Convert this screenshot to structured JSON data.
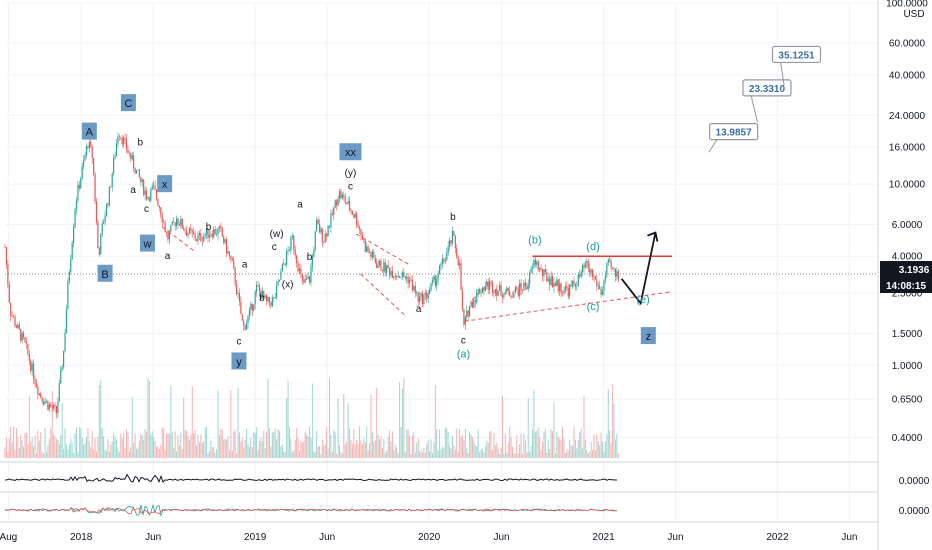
{
  "chart_data": {
    "type": "candlestick",
    "currency": "USD",
    "y_scale": "log",
    "ylim": [
      0.3,
      100
    ],
    "price_ticks": [
      "100.0000",
      "60.0000",
      "40.0000",
      "24.0000",
      "16.0000",
      "10.0000",
      "6.0000",
      "4.0000",
      "2.5000",
      "1.5000",
      "1.0000",
      "0.6500",
      "0.4000"
    ],
    "price_tick_values": [
      100,
      60,
      40,
      24,
      16,
      10,
      6,
      4,
      2.5,
      1.5,
      1.0,
      0.65,
      0.4
    ],
    "x_ticks": [
      "Aug",
      "2018",
      "Jun",
      "2019",
      "Jun",
      "2020",
      "Jun",
      "2021",
      "Jun",
      "2022",
      "Jun"
    ],
    "x_tick_dates": [
      "2017-08-01",
      "2018-01-01",
      "2018-06-01",
      "2019-01-01",
      "2019-06-01",
      "2020-01-01",
      "2020-06-01",
      "2021-01-01",
      "2021-06-01",
      "2022-01-01",
      "2022-06-01"
    ],
    "last_price": "3.1936",
    "countdown": "14:08:15",
    "indicator_values": [
      "0.0000",
      "0.0000"
    ],
    "price_path": [
      [
        "2017-07-25",
        4.5
      ],
      [
        "2017-08-05",
        2.0
      ],
      [
        "2017-08-20",
        1.6
      ],
      [
        "2017-09-05",
        1.3
      ],
      [
        "2017-09-20",
        0.95
      ],
      [
        "2017-10-05",
        0.7
      ],
      [
        "2017-10-25",
        0.6
      ],
      [
        "2017-11-10",
        0.55
      ],
      [
        "2017-11-25",
        1.2
      ],
      [
        "2017-12-05",
        3.0
      ],
      [
        "2017-12-20",
        8.0
      ],
      [
        "2018-01-03",
        12.0
      ],
      [
        "2018-01-15",
        17.0
      ],
      [
        "2018-01-25",
        14.0
      ],
      [
        "2018-02-06",
        4.0
      ],
      [
        "2018-02-15",
        6.0
      ],
      [
        "2018-03-01",
        9.0
      ],
      [
        "2018-03-20",
        20.0
      ],
      [
        "2018-04-01",
        17.0
      ],
      [
        "2018-04-15",
        14.0
      ],
      [
        "2018-05-01",
        11.0
      ],
      [
        "2018-05-20",
        8.5
      ],
      [
        "2018-06-01",
        9.5
      ],
      [
        "2018-06-15",
        7.5
      ],
      [
        "2018-07-01",
        5.0
      ],
      [
        "2018-07-20",
        6.5
      ],
      [
        "2018-08-10",
        5.5
      ],
      [
        "2018-09-01",
        5.0
      ],
      [
        "2018-10-01",
        5.5
      ],
      [
        "2018-10-20",
        5.5
      ],
      [
        "2018-11-15",
        3.5
      ],
      [
        "2018-12-07",
        1.6
      ],
      [
        "2018-12-20",
        1.9
      ],
      [
        "2019-01-05",
        2.7
      ],
      [
        "2019-01-25",
        2.2
      ],
      [
        "2019-02-10",
        2.3
      ],
      [
        "2019-02-28",
        3.5
      ],
      [
        "2019-03-20",
        5.0
      ],
      [
        "2019-04-10",
        2.8
      ],
      [
        "2019-04-25",
        3.0
      ],
      [
        "2019-05-10",
        6.0
      ],
      [
        "2019-05-25",
        5.0
      ],
      [
        "2019-06-10",
        6.5
      ],
      [
        "2019-06-25",
        9.0
      ],
      [
        "2019-07-10",
        8.0
      ],
      [
        "2019-08-01",
        6.5
      ],
      [
        "2019-08-20",
        4.5
      ],
      [
        "2019-09-15",
        3.6
      ],
      [
        "2019-10-15",
        3.3
      ],
      [
        "2019-11-20",
        3.0
      ],
      [
        "2019-12-10",
        2.3
      ],
      [
        "2019-12-25",
        2.4
      ],
      [
        "2020-01-15",
        3.0
      ],
      [
        "2020-02-05",
        4.0
      ],
      [
        "2020-02-20",
        5.2
      ],
      [
        "2020-03-05",
        3.5
      ],
      [
        "2020-03-13",
        1.6
      ],
      [
        "2020-03-25",
        2.1
      ],
      [
        "2020-04-15",
        2.6
      ],
      [
        "2020-05-05",
        2.8
      ],
      [
        "2020-05-25",
        2.6
      ],
      [
        "2020-06-15",
        2.5
      ],
      [
        "2020-07-05",
        2.6
      ],
      [
        "2020-07-25",
        2.8
      ],
      [
        "2020-08-10",
        3.8
      ],
      [
        "2020-08-25",
        3.2
      ],
      [
        "2020-09-10",
        3.0
      ],
      [
        "2020-10-01",
        2.7
      ],
      [
        "2020-10-20",
        2.6
      ],
      [
        "2020-11-10",
        3.0
      ],
      [
        "2020-11-25",
        3.6
      ],
      [
        "2020-12-10",
        3.1
      ],
      [
        "2020-12-28",
        2.5
      ],
      [
        "2021-01-10",
        3.6
      ],
      [
        "2021-01-25",
        3.2
      ],
      [
        "2021-02-01",
        3.19
      ]
    ],
    "resistance_line": {
      "from": [
        "2020-08-05",
        4.0
      ],
      "to": [
        "2021-05-25",
        4.0
      ]
    },
    "support_lines": [
      {
        "from": [
          "2020-03-15",
          1.75
        ],
        "to": [
          "2021-05-25",
          2.55
        ]
      }
    ],
    "triangle_lines": [
      {
        "from": [
          "2018-06-20",
          5.8
        ],
        "to": [
          "2018-08-25",
          4.3
        ]
      },
      {
        "from": [
          "2019-08-01",
          5.3
        ],
        "to": [
          "2019-11-20",
          3.6
        ]
      },
      {
        "from": [
          "2019-08-10",
          3.2
        ],
        "to": [
          "2019-11-10",
          1.9
        ]
      },
      {
        "from": [
          "2020-04-01",
          2.3
        ],
        "to": [
          "2020-05-05",
          2.85
        ]
      }
    ],
    "projection_path": [
      [
        "2021-02-08",
        3.0
      ],
      [
        "2021-03-20",
        2.2
      ],
      [
        "2021-04-20",
        5.4
      ]
    ],
    "wave_labels": [
      {
        "text": "A",
        "date": "2018-01-18",
        "price": 19.5,
        "boxed": true
      },
      {
        "text": "B",
        "date": "2018-02-20",
        "price": 3.2,
        "boxed": true
      },
      {
        "text": "C",
        "date": "2018-04-10",
        "price": 28,
        "boxed": true
      },
      {
        "text": "b",
        "date": "2018-05-05",
        "price": 17.0,
        "boxed": false
      },
      {
        "text": "a",
        "date": "2018-04-20",
        "price": 9.3,
        "boxed": false
      },
      {
        "text": "c",
        "date": "2018-05-18",
        "price": 7.3,
        "boxed": false
      },
      {
        "text": "x",
        "date": "2018-06-25",
        "price": 10.0,
        "boxed": true
      },
      {
        "text": "w",
        "date": "2018-05-20",
        "price": 4.7,
        "boxed": true
      },
      {
        "text": "a",
        "date": "2018-07-01",
        "price": 4.0,
        "boxed": false
      },
      {
        "text": "b",
        "date": "2018-09-25",
        "price": 5.8,
        "boxed": false
      },
      {
        "text": "a",
        "date": "2018-12-10",
        "price": 3.6,
        "boxed": false
      },
      {
        "text": "b",
        "date": "2019-01-15",
        "price": 2.35,
        "boxed": false
      },
      {
        "text": "c",
        "date": "2018-11-28",
        "price": 1.35,
        "boxed": false
      },
      {
        "text": "y",
        "date": "2018-11-28",
        "price": 1.05,
        "boxed": true
      },
      {
        "text": "c",
        "date": "2019-02-10",
        "price": 4.5,
        "boxed": false
      },
      {
        "text": "(w)",
        "date": "2019-02-15",
        "price": 5.3,
        "boxed": false
      },
      {
        "text": "(x)",
        "date": "2019-03-10",
        "price": 2.8,
        "boxed": false
      },
      {
        "text": "a",
        "date": "2019-04-05",
        "price": 7.7,
        "boxed": false
      },
      {
        "text": "b",
        "date": "2019-04-25",
        "price": 3.95,
        "boxed": false
      },
      {
        "text": "c",
        "date": "2019-07-20",
        "price": 9.7,
        "boxed": false
      },
      {
        "text": "(y)",
        "date": "2019-07-20",
        "price": 11.5,
        "boxed": false
      },
      {
        "text": "xx",
        "date": "2019-07-20",
        "price": 15.0,
        "boxed": true
      },
      {
        "text": "a",
        "date": "2019-12-10",
        "price": 2.05,
        "boxed": false
      },
      {
        "text": "b",
        "date": "2020-02-20",
        "price": 6.6,
        "boxed": false
      },
      {
        "text": "c",
        "date": "2020-03-13",
        "price": 1.37,
        "boxed": false
      },
      {
        "text": "(a)",
        "date": "2020-03-13",
        "price": 1.15,
        "boxed": false,
        "teal": true
      },
      {
        "text": "(b)",
        "date": "2020-08-10",
        "price": 4.9,
        "boxed": false,
        "teal": true
      },
      {
        "text": "(d)",
        "date": "2020-12-10",
        "price": 4.5,
        "boxed": false,
        "teal": true
      },
      {
        "text": "(c)",
        "date": "2020-12-10",
        "price": 2.1,
        "boxed": false,
        "teal": true
      },
      {
        "text": "(e)",
        "date": "2021-03-25",
        "price": 2.3,
        "boxed": false,
        "teal": true
      },
      {
        "text": "z",
        "date": "2021-04-05",
        "price": 1.45,
        "boxed": true
      }
    ],
    "targets": [
      {
        "label": "13.9857",
        "date": "2021-10-01",
        "price": 19.5,
        "pointer": [
          "2021-08-10",
          15.0
        ]
      },
      {
        "label": "23.3310",
        "date": "2021-12-10",
        "price": 34.0,
        "pointer": [
          "2021-11-20",
          22.0
        ]
      },
      {
        "label": "35.1251",
        "date": "2022-02-10",
        "price": 52.0,
        "pointer": [
          "2022-01-15",
          35.0
        ]
      }
    ]
  },
  "colors": {
    "up": "#26a69a",
    "down": "#ef5350",
    "resistance": "#e53935",
    "support": "#ef5350",
    "wave_box": "#6b9ac4",
    "teal_label": "#1e9aa8",
    "last_price_bg": "#131722",
    "projection": "#131722"
  }
}
